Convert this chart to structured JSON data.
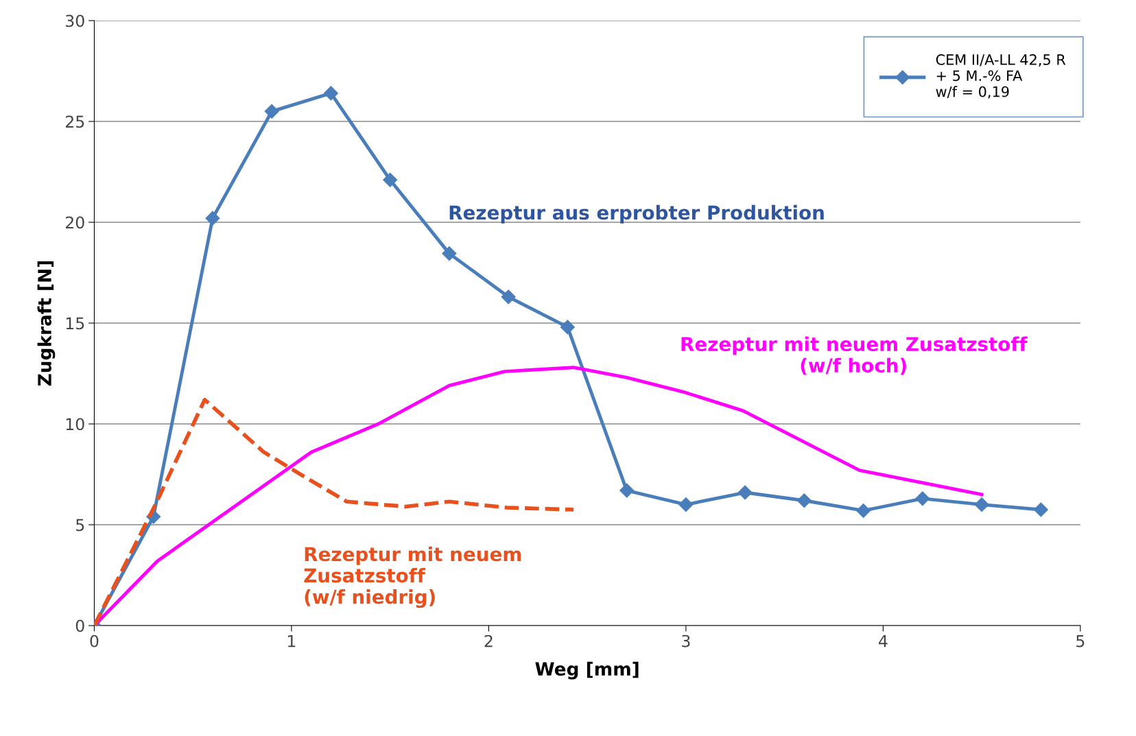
{
  "chart_data": {
    "type": "line",
    "xlabel": "Weg [mm]",
    "ylabel": "Zugkraft [N]",
    "xlim": [
      0,
      5
    ],
    "ylim": [
      0,
      30
    ],
    "xticks": [
      0,
      1,
      2,
      3,
      4,
      5
    ],
    "yticks": [
      0,
      5,
      10,
      15,
      20,
      25,
      30
    ],
    "grid": "y",
    "legend": "top right",
    "series": [
      {
        "name": "CEM II/A-LL 42,5 R\n+ 5 M.-% FA\nw/f = 0,19",
        "color": "#4a7ebb",
        "marker": "diamond",
        "line_style": "solid",
        "x": [
          0,
          0.3,
          0.6,
          0.9,
          1.2,
          1.5,
          1.8,
          2.1,
          2.4,
          2.7,
          3.0,
          3.3,
          3.6,
          3.9,
          4.2,
          4.5,
          4.8
        ],
        "values": [
          0,
          5.4,
          20.2,
          25.5,
          26.4,
          22.1,
          18.45,
          16.3,
          14.8,
          6.7,
          6.0,
          6.6,
          6.2,
          5.7,
          6.3,
          6.0,
          5.75
        ]
      },
      {
        "color": "#ff00ff",
        "marker": "none",
        "line_style": "solid",
        "x": [
          0,
          0.32,
          1.1,
          1.44,
          1.8,
          2.08,
          2.43,
          2.7,
          3.0,
          3.29,
          3.88,
          4.5
        ],
        "values": [
          0,
          3.2,
          8.6,
          10.0,
          11.9,
          12.6,
          12.8,
          12.3,
          11.55,
          10.65,
          7.7,
          6.5
        ]
      },
      {
        "color": "#e8501e",
        "marker": "none",
        "line_style": "dashed",
        "x": [
          0,
          0.31,
          0.56,
          0.86,
          1.08,
          1.28,
          1.58,
          1.8,
          2.09,
          2.43
        ],
        "values": [
          0,
          6.0,
          11.2,
          8.6,
          7.3,
          6.15,
          5.9,
          6.15,
          5.85,
          5.75
        ]
      }
    ],
    "annotations": [
      "Rezeptur aus erprobter Produktion",
      "Rezeptur mit neuem Zusatzstoff\n(w/f hoch)",
      "Rezeptur mit neuem\nZusatzstoff\n(w/f niedrig)"
    ]
  }
}
